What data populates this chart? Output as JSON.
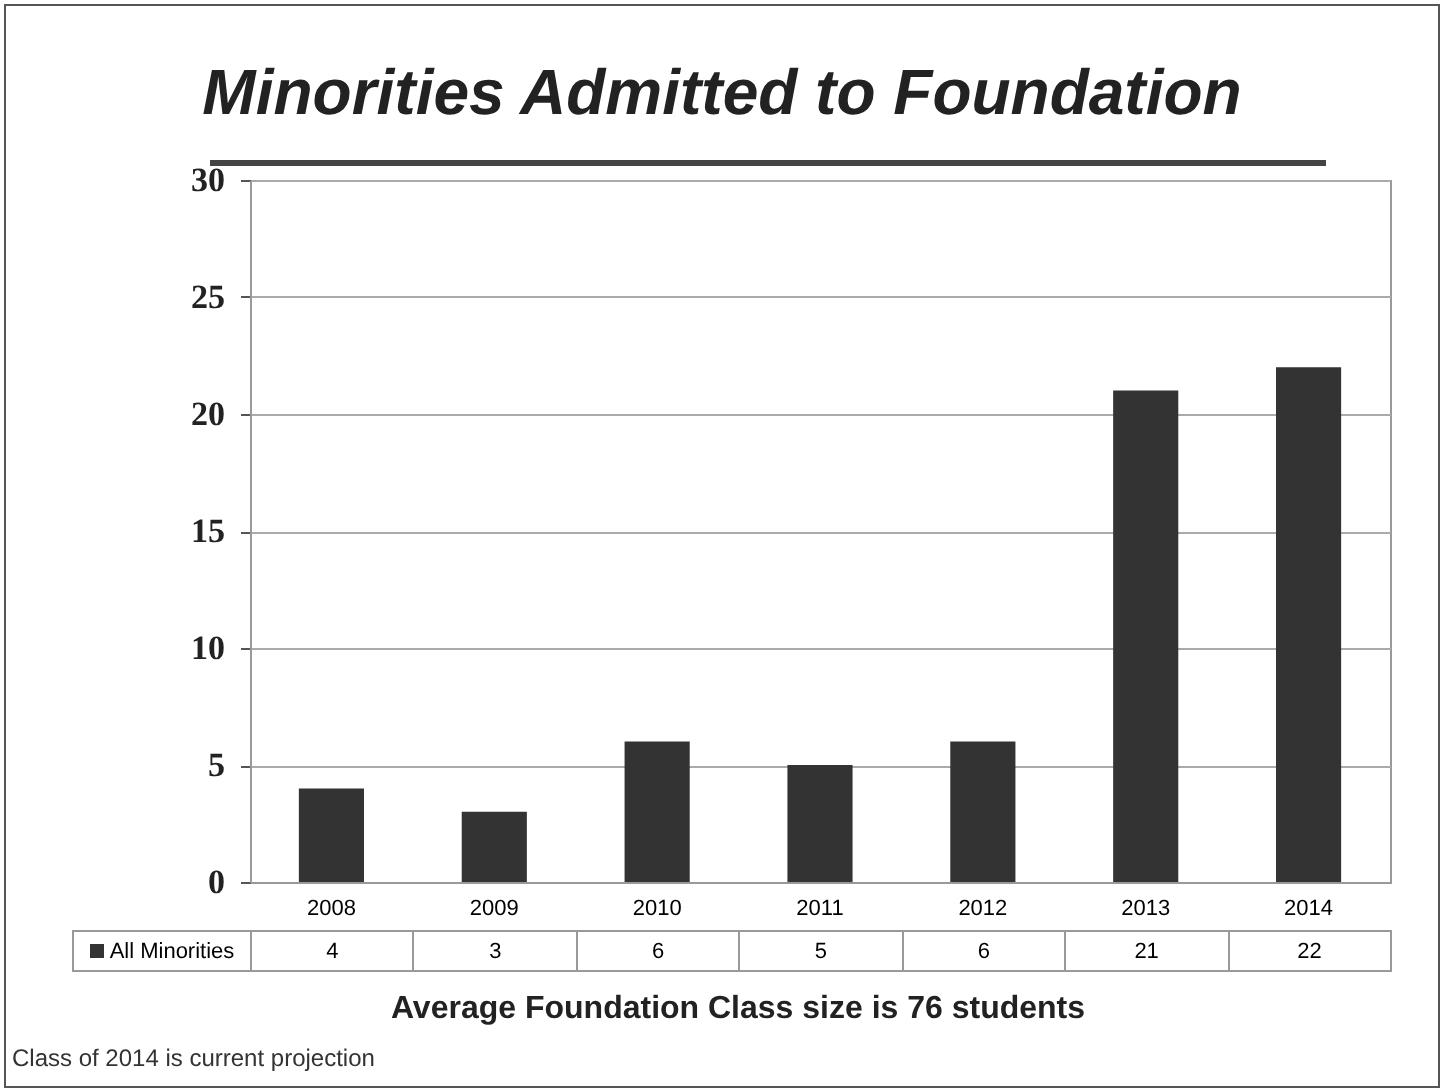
{
  "chart_data": {
    "type": "bar",
    "title": "Minorities Admitted to Foundation",
    "categories": [
      "2008",
      "2009",
      "2010",
      "2011",
      "2012",
      "2013",
      "2014"
    ],
    "series": [
      {
        "name": "All Minorities",
        "color": "#333333",
        "values": [
          4,
          3,
          6,
          5,
          6,
          21,
          22
        ]
      }
    ],
    "ylim": [
      0,
      30
    ],
    "yticks": [
      0,
      5,
      10,
      15,
      20,
      25,
      30
    ],
    "grid": "y",
    "data_labels": true,
    "legend": "bottom",
    "annotations": [
      "Average Foundation Class size is 76 students",
      "Class of 2014 is current projection"
    ]
  }
}
